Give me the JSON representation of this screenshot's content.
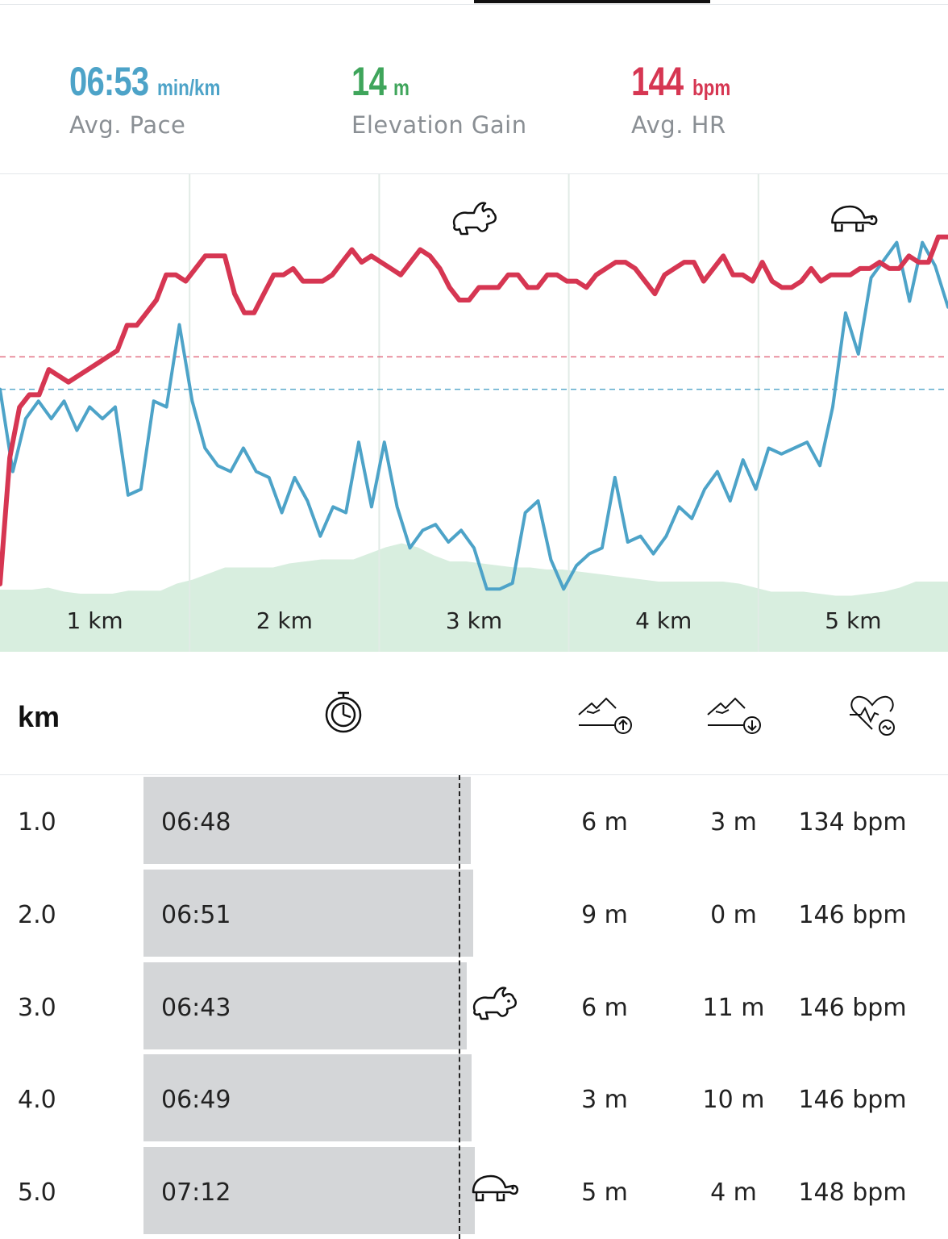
{
  "stats": {
    "pace": {
      "value": "06:53",
      "unit": "min/km",
      "label": "Avg. Pace",
      "color": "#4da3c8"
    },
    "elevation": {
      "value": "14",
      "unit": "m",
      "label": "Elevation Gain",
      "color": "#3fa55b"
    },
    "hr": {
      "value": "144",
      "unit": "bpm",
      "label": "Avg. HR",
      "color": "#d63652"
    }
  },
  "chart_data": {
    "type": "line",
    "x_unit": "km",
    "x_range": [
      0,
      5
    ],
    "tick_labels": [
      "1 km",
      "2 km",
      "3 km",
      "4 km",
      "5 km"
    ],
    "markers": [
      {
        "icon": "rabbit-icon",
        "segment": 3
      },
      {
        "icon": "turtle-icon",
        "segment": 5
      }
    ],
    "series": [
      {
        "color": "#d63652",
        "avg": 144,
        "range": [
          108,
          164
        ],
        "values": [
          108,
          128,
          136,
          138,
          138,
          142,
          141,
          140,
          141,
          142,
          143,
          144,
          145,
          149,
          149,
          151,
          153,
          157,
          157,
          156,
          158,
          160,
          160,
          160,
          154,
          151,
          151,
          154,
          157,
          157,
          158,
          156,
          156,
          156,
          157,
          159,
          161,
          159,
          160,
          159,
          158,
          157,
          159,
          161,
          160,
          158,
          155,
          153,
          153,
          155,
          155,
          155,
          157,
          157,
          155,
          155,
          157,
          157,
          156,
          156,
          155,
          157,
          158,
          159,
          159,
          158,
          156,
          154,
          157,
          158,
          159,
          159,
          156,
          158,
          160,
          157,
          157,
          156,
          159,
          156,
          155,
          155,
          156,
          158,
          156,
          157,
          157,
          157,
          158,
          158,
          159,
          158,
          158,
          160,
          159,
          159,
          163,
          163
        ]
      },
      {
        "color": "#4da3c8",
        "avg": 413,
        "range": [
          380,
          440
        ],
        "values": [
          413,
          399,
          408,
          411,
          408,
          411,
          406,
          410,
          408,
          410,
          395,
          396,
          411,
          410,
          424,
          411,
          403,
          400,
          399,
          403,
          399,
          398,
          392,
          398,
          394,
          388,
          393,
          392,
          404,
          393,
          404,
          393,
          386,
          389,
          390,
          387,
          389,
          386,
          379,
          379,
          380,
          392,
          394,
          384,
          379,
          383,
          385,
          386,
          398,
          387,
          388,
          385,
          388,
          393,
          391,
          396,
          399,
          394,
          401,
          396,
          403,
          402,
          403,
          404,
          400,
          410,
          426,
          419,
          432,
          435,
          438,
          428,
          438,
          434,
          427
        ]
      },
      {
        "color": "#d8eedf",
        "values": [
          12,
          12,
          12,
          14,
          10,
          8,
          8,
          8,
          11,
          11,
          11,
          18,
          22,
          28,
          34,
          34,
          34,
          34,
          38,
          40,
          42,
          42,
          42,
          48,
          54,
          58,
          54,
          46,
          40,
          40,
          38,
          36,
          34,
          34,
          32,
          32,
          30,
          28,
          26,
          24,
          22,
          20,
          20,
          20,
          20,
          20,
          18,
          14,
          10,
          10,
          10,
          8,
          6,
          6,
          8,
          10,
          14,
          20,
          20,
          20
        ]
      }
    ]
  },
  "table": {
    "headers": {
      "km": "km"
    },
    "icons": [
      "stopwatch-icon",
      "elevation-up-icon",
      "elevation-down-icon",
      "heart-rate-icon"
    ],
    "rows": [
      {
        "km": "1.0",
        "time": "06:48",
        "fill": 0.988,
        "up": "6 m",
        "down": "3 m",
        "hr": "134 bpm",
        "icon": ""
      },
      {
        "km": "2.0",
        "time": "06:51",
        "fill": 0.995,
        "up": "9 m",
        "down": "0 m",
        "hr": "146 bpm",
        "icon": ""
      },
      {
        "km": "3.0",
        "time": "06:43",
        "fill": 0.976,
        "up": "6 m",
        "down": "11 m",
        "hr": "146 bpm",
        "icon": "rabbit-icon"
      },
      {
        "km": "4.0",
        "time": "06:49",
        "fill": 0.99,
        "up": "3 m",
        "down": "10 m",
        "hr": "146 bpm",
        "icon": ""
      },
      {
        "km": "5.0",
        "time": "07:12",
        "fill": 1.0,
        "up": "5 m",
        "down": "4 m",
        "hr": "148 bpm",
        "icon": "turtle-icon"
      }
    ]
  }
}
